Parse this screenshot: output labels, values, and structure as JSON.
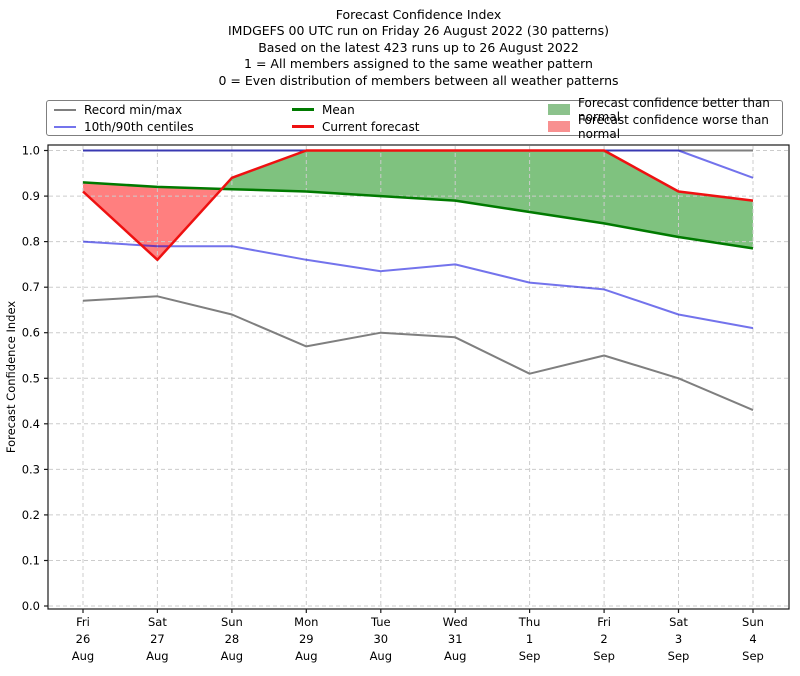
{
  "legend": {
    "items": [
      {
        "label": "Record min/max",
        "swatch": "line",
        "color": "#7f7f7f",
        "thick": false
      },
      {
        "label": "10th/90th centiles",
        "swatch": "line",
        "color": "#7474ec",
        "thick": false
      },
      {
        "label": "Mean",
        "swatch": "line",
        "color": "#007a00",
        "thick": true
      },
      {
        "label": "Current forecast",
        "swatch": "line",
        "color": "#ee1111",
        "thick": true
      },
      {
        "label": "Forecast confidence better than normal",
        "swatch": "patch",
        "color": "#8cc28c",
        "thick": false
      },
      {
        "label": "Forecast confidence worse than normal",
        "swatch": "patch",
        "color": "#f89090",
        "thick": false
      }
    ]
  },
  "chart_data": {
    "type": "line",
    "title_lines": [
      "Forecast Confidence Index",
      "IMDGEFS 00 UTC run on Friday 26 August 2022 (30 patterns)",
      "Based on the latest 423 runs up to 26 August 2022",
      "1 = All members assigned to the same weather pattern",
      "0 = Even distribution of members between all weather patterns"
    ],
    "ylabel": "Forecast Confidence Index",
    "xlabel": "",
    "ylim": [
      0.0,
      1.0
    ],
    "y_ticks": [
      0.0,
      0.1,
      0.2,
      0.3,
      0.4,
      0.5,
      0.6,
      0.7,
      0.8,
      0.9,
      1.0
    ],
    "grid": true,
    "legend_position": "top",
    "categories": [
      [
        "Fri",
        "26",
        "Aug"
      ],
      [
        "Sat",
        "27",
        "Aug"
      ],
      [
        "Sun",
        "28",
        "Aug"
      ],
      [
        "Mon",
        "29",
        "Aug"
      ],
      [
        "Tue",
        "30",
        "Aug"
      ],
      [
        "Wed",
        "31",
        "Aug"
      ],
      [
        "Thu",
        "1",
        "Sep"
      ],
      [
        "Fri",
        "2",
        "Sep"
      ],
      [
        "Sat",
        "3",
        "Sep"
      ],
      [
        "Sun",
        "4",
        "Sep"
      ]
    ],
    "series": [
      {
        "name": "Record min/max",
        "role": "record-max",
        "color": "#7f7f7f",
        "width": 2,
        "opacity": 1,
        "values": [
          1.0,
          1.0,
          1.0,
          1.0,
          1.0,
          1.0,
          1.0,
          1.0,
          1.0,
          1.0
        ]
      },
      {
        "name": "Record min/max",
        "role": "record-min",
        "color": "#7f7f7f",
        "width": 2,
        "opacity": 1,
        "values": [
          0.67,
          0.68,
          0.64,
          0.57,
          0.6,
          0.59,
          0.51,
          0.55,
          0.5,
          0.43
        ]
      },
      {
        "name": "10th/90th centiles",
        "role": "centile-90",
        "color": "#0000dd",
        "width": 2,
        "opacity": 0.55,
        "values": [
          1.0,
          1.0,
          1.0,
          1.0,
          1.0,
          1.0,
          1.0,
          1.0,
          1.0,
          0.94
        ]
      },
      {
        "name": "10th/90th centiles",
        "role": "centile-10",
        "color": "#0000dd",
        "width": 2,
        "opacity": 0.55,
        "values": [
          0.8,
          0.79,
          0.79,
          0.76,
          0.735,
          0.75,
          0.71,
          0.695,
          0.64,
          0.61
        ]
      },
      {
        "name": "Mean",
        "role": "mean",
        "color": "#007a00",
        "width": 2.5,
        "opacity": 1,
        "values": [
          0.93,
          0.92,
          0.915,
          0.91,
          0.9,
          0.89,
          0.865,
          0.84,
          0.81,
          0.785
        ]
      },
      {
        "name": "Current forecast",
        "role": "current-forecast",
        "color": "#ee1111",
        "width": 2.5,
        "opacity": 1,
        "values": [
          0.91,
          0.76,
          0.94,
          1.0,
          1.0,
          1.0,
          1.0,
          1.0,
          0.91,
          0.89
        ]
      }
    ],
    "fills": {
      "upper_series": "current-forecast",
      "lower_series": "mean",
      "better_color": "rgba(0,134,0,0.5)",
      "worse_color": "rgba(255,0,0,0.5)"
    }
  }
}
